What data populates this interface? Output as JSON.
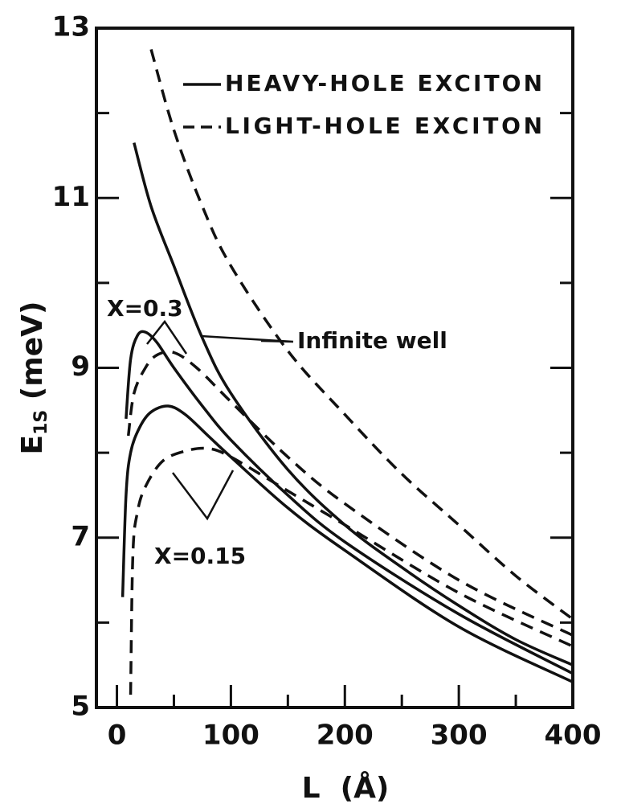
{
  "chart_data": {
    "type": "line",
    "xlabel": "L  (Å)",
    "ylabel": [
      "E",
      "1S",
      " (meV)"
    ],
    "xlim": [
      -18,
      400
    ],
    "ylim": [
      5,
      13
    ],
    "xticks": [
      0,
      100,
      200,
      300,
      400
    ],
    "yticks": [
      5,
      7,
      9,
      11,
      13
    ],
    "xminor": [
      50,
      150,
      250,
      350
    ],
    "yminor": [
      6,
      8,
      10,
      12
    ],
    "color": "#111111",
    "legend": [
      {
        "label": "HEAVY-HOLE EXCITON",
        "style": "solid"
      },
      {
        "label": "LIGHT-HOLE EXCITON",
        "style": "dashed"
      }
    ],
    "annotations": [
      "X=0.3",
      "Infinite well",
      "X=0.15"
    ],
    "series": [
      {
        "style": "dashed",
        "x": [
          30,
          50,
          75,
          100,
          150,
          200,
          250,
          300,
          350,
          400
        ],
        "values": [
          12.75,
          11.8,
          10.9,
          10.2,
          9.2,
          8.45,
          7.75,
          7.15,
          6.55,
          6.04
        ]
      },
      {
        "style": "solid",
        "x": [
          15,
          30,
          50,
          75,
          100,
          150,
          200,
          250,
          300,
          350,
          400
        ],
        "values": [
          11.65,
          10.9,
          10.2,
          9.35,
          8.7,
          7.8,
          7.15,
          6.65,
          6.2,
          5.8,
          5.5
        ]
      },
      {
        "style": "solid",
        "x": [
          8,
          12,
          18,
          25,
          35,
          50,
          75,
          100,
          150,
          200,
          300,
          400
        ],
        "values": [
          8.4,
          9.1,
          9.38,
          9.42,
          9.3,
          9.0,
          8.55,
          8.15,
          7.5,
          6.95,
          6.1,
          5.4
        ]
      },
      {
        "style": "solid",
        "x": [
          5,
          8,
          12,
          20,
          30,
          45,
          60,
          80,
          100,
          150,
          200,
          300,
          400
        ],
        "values": [
          6.3,
          7.5,
          8.0,
          8.3,
          8.48,
          8.55,
          8.45,
          8.2,
          7.95,
          7.35,
          6.85,
          5.95,
          5.3
        ]
      },
      {
        "style": "dashed",
        "x": [
          10,
          15,
          25,
          35,
          50,
          70,
          100,
          150,
          200,
          300,
          400
        ],
        "values": [
          8.2,
          8.7,
          9.0,
          9.15,
          9.18,
          9.0,
          8.6,
          7.95,
          7.4,
          6.5,
          5.85
        ]
      },
      {
        "style": "dashed",
        "x": [
          12,
          14,
          18,
          25,
          40,
          60,
          80,
          100,
          150,
          200,
          300,
          400
        ],
        "values": [
          5.15,
          6.8,
          7.3,
          7.6,
          7.9,
          8.02,
          8.05,
          7.95,
          7.55,
          7.15,
          6.35,
          5.72
        ]
      }
    ]
  }
}
